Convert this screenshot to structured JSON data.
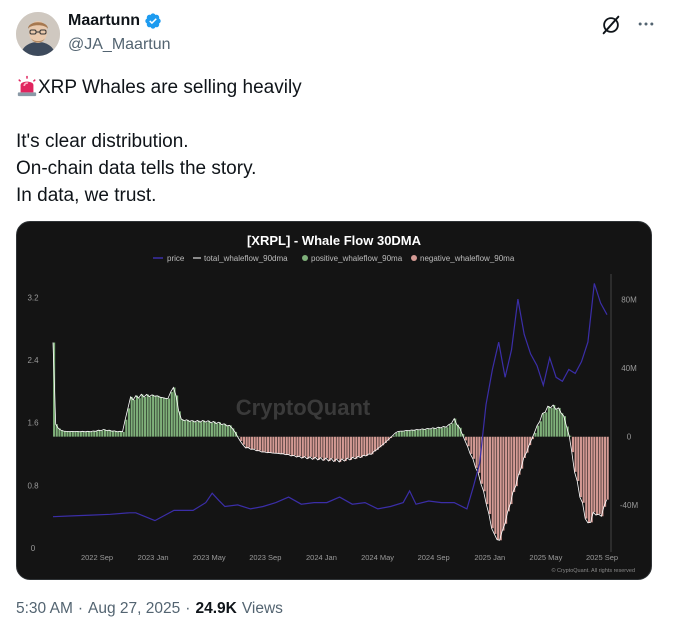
{
  "author": {
    "name": "Maartunn",
    "handle": "@JA_Maartun"
  },
  "tweet": {
    "headline": "XRP Whales are selling heavily",
    "lines": [
      "It's clear distribution.",
      "On-chain data tells the story.",
      "In data, we trust."
    ]
  },
  "meta": {
    "time": "5:30 AM",
    "date": "Aug 27, 2025",
    "views": "24.9K",
    "views_label": "Views"
  },
  "icons": {
    "verified": "verified-badge-icon",
    "grok": "grok-icon",
    "more": "more-icon",
    "alert": "siren-emoji-icon"
  },
  "colors": {
    "price": "#3b2ea8",
    "positive": "#7fb07a",
    "negative": "#d49a94",
    "total": "#ffffff",
    "background": "#141414"
  },
  "chart_data": {
    "type": "area",
    "title": "[XRPL] - Whale Flow 30DMA",
    "watermark": "CryptoQuant",
    "copyright": "© CryptoQuant. All rights reserved",
    "legend": [
      "price",
      "total_whaleflow_90dma",
      "positive_whaleflow_90ma",
      "negative_whaleflow_90ma"
    ],
    "legend_placement": "top-center",
    "x_ticks": [
      "2022 Sep",
      "2023 Jan",
      "2023 May",
      "2023 Sep",
      "2024 Jan",
      "2024 May",
      "2024 Sep",
      "2025 Jan",
      "2025 May",
      "2025 Sep"
    ],
    "y_left_ticks": [
      "0",
      "0.8",
      "1.6",
      "2.4",
      "3.2"
    ],
    "y_left_range": [
      0,
      3.5
    ],
    "y_right_ticks": [
      "80M",
      "40M",
      "0",
      "-40M"
    ],
    "y_right_range": [
      -65,
      95
    ],
    "grid": false,
    "price_series": [
      [
        0,
        0.42
      ],
      [
        3,
        0.38
      ],
      [
        6,
        0.44
      ],
      [
        9,
        0.4
      ],
      [
        12,
        0.47
      ],
      [
        13,
        0.42
      ],
      [
        16,
        0.37
      ],
      [
        19,
        0.45
      ],
      [
        22,
        0.5
      ],
      [
        24,
        0.55
      ],
      [
        25,
        0.72
      ],
      [
        26,
        0.58
      ],
      [
        27,
        0.55
      ],
      [
        29,
        0.52
      ],
      [
        31,
        0.52
      ],
      [
        33,
        0.5
      ],
      [
        35,
        0.6
      ],
      [
        37,
        0.62
      ],
      [
        39,
        0.58
      ],
      [
        41,
        0.55
      ],
      [
        43,
        0.6
      ],
      [
        45,
        0.62
      ],
      [
        47,
        0.58
      ],
      [
        49,
        0.55
      ],
      [
        51,
        0.52
      ],
      [
        53,
        0.5
      ],
      [
        55,
        0.6
      ],
      [
        56,
        0.7
      ],
      [
        57,
        0.58
      ],
      [
        59,
        0.57
      ],
      [
        61,
        0.6
      ],
      [
        63,
        0.55
      ],
      [
        65,
        0.52
      ],
      [
        66,
        0.75
      ],
      [
        67,
        1.1
      ],
      [
        68,
        1.8
      ],
      [
        69,
        2.3
      ],
      [
        70,
        2.6
      ],
      [
        71,
        2.2
      ],
      [
        72,
        2.5
      ],
      [
        73,
        3.2
      ],
      [
        74,
        2.7
      ],
      [
        75,
        2.5
      ],
      [
        76,
        2.3
      ],
      [
        77,
        2.1
      ],
      [
        78,
        2.4
      ],
      [
        79,
        2.2
      ],
      [
        80,
        2.1
      ],
      [
        81,
        2.3
      ],
      [
        82,
        2.2
      ],
      [
        83,
        2.4
      ],
      [
        84,
        2.6
      ],
      [
        85,
        3.4
      ],
      [
        86,
        3.1
      ],
      [
        87,
        3.0
      ]
    ],
    "flow_series": [
      [
        0,
        55
      ],
      [
        0.3,
        8
      ],
      [
        1,
        4
      ],
      [
        2,
        3
      ],
      [
        4,
        3
      ],
      [
        6,
        3
      ],
      [
        8,
        4
      ],
      [
        10,
        3
      ],
      [
        11,
        3
      ],
      [
        12,
        22
      ],
      [
        14,
        24
      ],
      [
        16,
        24
      ],
      [
        18,
        22
      ],
      [
        19,
        30
      ],
      [
        20,
        10
      ],
      [
        22,
        9
      ],
      [
        24,
        9
      ],
      [
        26,
        8
      ],
      [
        28,
        6
      ],
      [
        30,
        -6
      ],
      [
        33,
        -9
      ],
      [
        36,
        -10
      ],
      [
        39,
        -12
      ],
      [
        42,
        -13
      ],
      [
        45,
        -14
      ],
      [
        48,
        -12
      ],
      [
        50,
        -10
      ],
      [
        52,
        -4
      ],
      [
        54,
        3
      ],
      [
        57,
        4
      ],
      [
        60,
        5
      ],
      [
        62,
        6
      ],
      [
        63,
        10
      ],
      [
        64,
        4
      ],
      [
        65,
        -5
      ],
      [
        66,
        -14
      ],
      [
        67,
        -24
      ],
      [
        68,
        -38
      ],
      [
        69,
        -55
      ],
      [
        70,
        -62
      ],
      [
        71,
        -50
      ],
      [
        72,
        -36
      ],
      [
        73,
        -24
      ],
      [
        74,
        -12
      ],
      [
        75,
        -3
      ],
      [
        76,
        6
      ],
      [
        77,
        14
      ],
      [
        78,
        18
      ],
      [
        79,
        17
      ],
      [
        80,
        14
      ],
      [
        81,
        2
      ],
      [
        82,
        -22
      ],
      [
        83,
        -38
      ],
      [
        84,
        -52
      ],
      [
        85,
        -44
      ],
      [
        86,
        -47
      ],
      [
        87,
        -36
      ]
    ]
  }
}
